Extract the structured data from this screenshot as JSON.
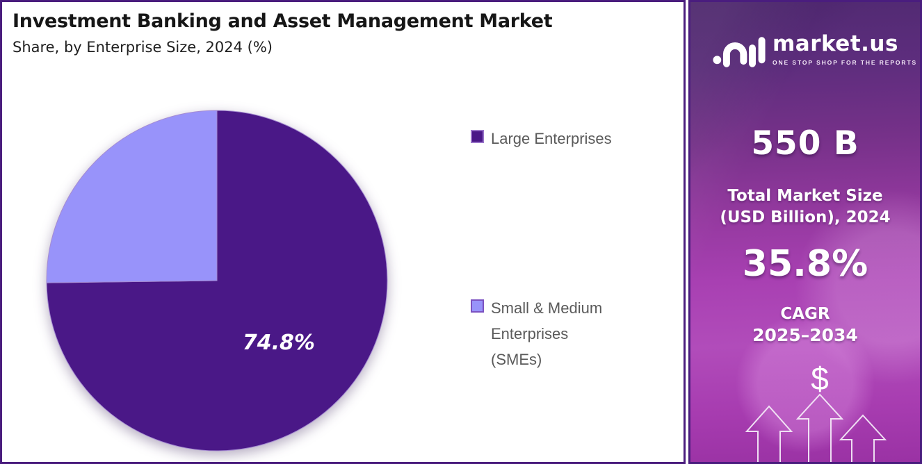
{
  "chart_data": {
    "type": "pie",
    "title": "Investment Banking and Asset Management Market",
    "subtitle": "Share, by Enterprise Size, 2024 (%)",
    "labels": [
      "Large Enterprises",
      "Small & Medium Enterprises (SMEs)"
    ],
    "values": [
      74.8,
      25.2
    ],
    "slice_labels": [
      "74.8%",
      ""
    ],
    "colors": [
      "#4A1887",
      "#9893FA"
    ],
    "swatch_border_colors": [
      "#9872C8",
      "#7B52C1"
    ],
    "start_angle_deg": 0,
    "direction": "clockwise",
    "legend_position": "right",
    "slice_label_color": "#ffffff"
  },
  "sidebar": {
    "logo": {
      "brand": "market.us",
      "tagline": "ONE STOP SHOP FOR THE REPORTS"
    },
    "market_size_value": "550 B",
    "market_size_label_line1": "Total Market Size",
    "market_size_label_line2": "(USD Billion), 2024",
    "cagr_value": "35.8%",
    "cagr_label": "CAGR",
    "cagr_period": "2025–2034",
    "dollar_symbol": "$"
  },
  "colors": {
    "panel_border": "#4A1D7E",
    "legend_text": "#5a5a5a",
    "sidebar_gradient_top": "#512a72",
    "sidebar_gradient_mid": "#a840b2",
    "sidebar_gradient_bottom": "#9a32a4"
  }
}
